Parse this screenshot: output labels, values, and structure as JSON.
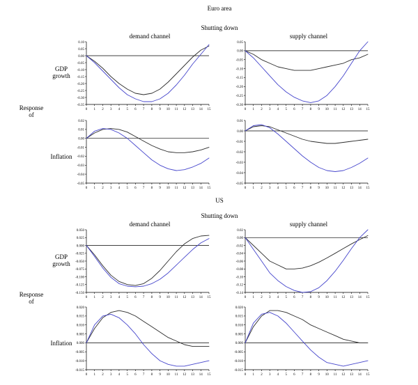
{
  "figure": {
    "euro_panel_title": "Euro area",
    "us_panel_title": "US",
    "shutting_down": "Shutting down",
    "demand_channel": "demand channel",
    "supply_channel": "supply channel",
    "response_of_line1": "Response",
    "response_of_line2": "of",
    "gdp_growth_line1": "GDP",
    "gdp_growth_line2": "growth",
    "inflation": "Inflation"
  },
  "colors": {
    "black_line": "#2b2b2b",
    "blue_line": "#4545cc",
    "axis": "#000000"
  },
  "chart_data": [
    {
      "id": "euro-gdp-demand",
      "panel": "Euro area",
      "row": "GDP growth",
      "column": "demand channel",
      "type": "line",
      "x": [
        0,
        1,
        2,
        3,
        4,
        5,
        6,
        7,
        8,
        9,
        10,
        11,
        12,
        13,
        14,
        15
      ],
      "ylim": [
        -0.35,
        0.1
      ],
      "yticks": [
        "0.10",
        "0.05",
        "0.00",
        "-0.05",
        "-0.10",
        "-0.15",
        "-0.20",
        "-0.25",
        "-0.30",
        "-0.35"
      ],
      "series": [
        {
          "name": "series-black",
          "color": "#2b2b2b",
          "values": [
            0.0,
            -0.04,
            -0.09,
            -0.15,
            -0.2,
            -0.24,
            -0.27,
            -0.28,
            -0.27,
            -0.24,
            -0.19,
            -0.13,
            -0.07,
            -0.01,
            0.04,
            0.07
          ]
        },
        {
          "name": "series-blue",
          "color": "#4545cc",
          "values": [
            0.0,
            -0.05,
            -0.11,
            -0.17,
            -0.23,
            -0.28,
            -0.31,
            -0.33,
            -0.33,
            -0.31,
            -0.27,
            -0.21,
            -0.14,
            -0.06,
            0.01,
            0.08
          ]
        }
      ]
    },
    {
      "id": "euro-gdp-supply",
      "panel": "Euro area",
      "row": "GDP growth",
      "column": "supply channel",
      "type": "line",
      "x": [
        0,
        1,
        2,
        3,
        4,
        5,
        6,
        7,
        8,
        9,
        10,
        11,
        12,
        13,
        14,
        15
      ],
      "ylim": [
        -0.3,
        0.05
      ],
      "yticks": [
        "0.05",
        "0.00",
        "-0.05",
        "-0.10",
        "-0.15",
        "-0.20",
        "-0.25",
        "-0.30"
      ],
      "series": [
        {
          "name": "series-black",
          "color": "#2b2b2b",
          "values": [
            0.0,
            -0.02,
            -0.05,
            -0.07,
            -0.09,
            -0.1,
            -0.11,
            -0.11,
            -0.11,
            -0.1,
            -0.09,
            -0.08,
            -0.07,
            -0.05,
            -0.04,
            -0.02
          ]
        },
        {
          "name": "series-blue",
          "color": "#4545cc",
          "values": [
            0.0,
            -0.04,
            -0.09,
            -0.14,
            -0.19,
            -0.23,
            -0.26,
            -0.28,
            -0.29,
            -0.28,
            -0.25,
            -0.2,
            -0.14,
            -0.07,
            0.0,
            0.05
          ]
        }
      ]
    },
    {
      "id": "euro-inflation-demand",
      "panel": "Euro area",
      "row": "Inflation",
      "column": "demand channel",
      "type": "line",
      "x": [
        0,
        1,
        2,
        3,
        4,
        5,
        6,
        7,
        8,
        9,
        10,
        11,
        12,
        13,
        14,
        15
      ],
      "ylim": [
        -0.05,
        0.02
      ],
      "yticks": [
        "0.02",
        "0.01",
        "0.00",
        "-0.01",
        "-0.02",
        "-0.03",
        "-0.04",
        "-0.05"
      ],
      "series": [
        {
          "name": "series-black",
          "color": "#2b2b2b",
          "values": [
            0.0,
            0.006,
            0.01,
            0.011,
            0.01,
            0.007,
            0.002,
            -0.003,
            -0.008,
            -0.012,
            -0.015,
            -0.016,
            -0.016,
            -0.015,
            -0.013,
            -0.01
          ]
        },
        {
          "name": "series-blue",
          "color": "#4545cc",
          "values": [
            0.0,
            0.008,
            0.011,
            0.01,
            0.006,
            0.0,
            -0.008,
            -0.016,
            -0.024,
            -0.03,
            -0.034,
            -0.036,
            -0.035,
            -0.032,
            -0.028,
            -0.022
          ]
        }
      ]
    },
    {
      "id": "euro-inflation-supply",
      "panel": "Euro area",
      "row": "Inflation",
      "column": "supply channel",
      "type": "line",
      "x": [
        0,
        1,
        2,
        3,
        4,
        5,
        6,
        7,
        8,
        9,
        10,
        11,
        12,
        13,
        14,
        15
      ],
      "ylim": [
        -0.05,
        0.01
      ],
      "yticks": [
        "0.01",
        "0.00",
        "-0.01",
        "-0.02",
        "-0.03",
        "-0.04",
        "-0.05"
      ],
      "series": [
        {
          "name": "series-black",
          "color": "#2b2b2b",
          "values": [
            0.0,
            0.004,
            0.005,
            0.004,
            0.001,
            -0.002,
            -0.005,
            -0.008,
            -0.01,
            -0.011,
            -0.012,
            -0.012,
            -0.011,
            -0.01,
            -0.009,
            -0.008
          ]
        },
        {
          "name": "series-blue",
          "color": "#4545cc",
          "values": [
            0.0,
            0.005,
            0.006,
            0.003,
            -0.003,
            -0.01,
            -0.017,
            -0.024,
            -0.03,
            -0.035,
            -0.038,
            -0.039,
            -0.038,
            -0.035,
            -0.031,
            -0.026
          ]
        }
      ]
    },
    {
      "id": "us-gdp-demand",
      "panel": "US",
      "row": "GDP growth",
      "column": "demand channel",
      "type": "line",
      "x": [
        0,
        1,
        2,
        3,
        4,
        5,
        6,
        7,
        8,
        9,
        10,
        11,
        12,
        13,
        14,
        15
      ],
      "ylim": [
        -0.15,
        0.05
      ],
      "yticks": [
        "0.050",
        "0.025",
        "0.000",
        "-0.025",
        "-0.050",
        "-0.075",
        "-0.100",
        "-0.125",
        "-0.150"
      ],
      "series": [
        {
          "name": "series-black",
          "color": "#2b2b2b",
          "values": [
            0.0,
            -0.03,
            -0.065,
            -0.095,
            -0.115,
            -0.125,
            -0.128,
            -0.122,
            -0.105,
            -0.08,
            -0.05,
            -0.02,
            0.005,
            0.022,
            0.03,
            0.032
          ]
        },
        {
          "name": "series-blue",
          "color": "#4545cc",
          "values": [
            0.0,
            -0.035,
            -0.072,
            -0.102,
            -0.122,
            -0.13,
            -0.132,
            -0.13,
            -0.122,
            -0.108,
            -0.088,
            -0.063,
            -0.038,
            -0.013,
            0.008,
            0.022
          ]
        }
      ]
    },
    {
      "id": "us-gdp-supply",
      "panel": "US",
      "row": "GDP growth",
      "column": "supply channel",
      "type": "line",
      "x": [
        0,
        1,
        2,
        3,
        4,
        5,
        6,
        7,
        8,
        9,
        10,
        11,
        12,
        13,
        14,
        15
      ],
      "ylim": [
        -0.14,
        0.02
      ],
      "yticks": [
        "0.02",
        "0.00",
        "-0.02",
        "-0.04",
        "-0.06",
        "-0.08",
        "-0.10",
        "-0.12",
        "-0.14"
      ],
      "series": [
        {
          "name": "series-black",
          "color": "#2b2b2b",
          "values": [
            0.0,
            -0.02,
            -0.04,
            -0.06,
            -0.07,
            -0.08,
            -0.08,
            -0.078,
            -0.072,
            -0.063,
            -0.052,
            -0.04,
            -0.028,
            -0.016,
            -0.005,
            0.005
          ]
        },
        {
          "name": "series-blue",
          "color": "#4545cc",
          "values": [
            0.0,
            -0.03,
            -0.06,
            -0.09,
            -0.11,
            -0.125,
            -0.135,
            -0.14,
            -0.138,
            -0.128,
            -0.11,
            -0.086,
            -0.058,
            -0.028,
            0.0,
            0.02
          ]
        }
      ]
    },
    {
      "id": "us-inflation-demand",
      "panel": "US",
      "row": "Inflation",
      "column": "demand channel",
      "type": "line",
      "x": [
        0,
        1,
        2,
        3,
        4,
        5,
        6,
        7,
        8,
        9,
        10,
        11,
        12,
        13,
        14,
        15
      ],
      "ylim": [
        -0.015,
        0.02
      ],
      "yticks": [
        "0.020",
        "0.015",
        "0.010",
        "0.005",
        "0.000",
        "-0.005",
        "-0.010",
        "-0.015"
      ],
      "series": [
        {
          "name": "series-black",
          "color": "#2b2b2b",
          "values": [
            0.0,
            0.008,
            0.014,
            0.017,
            0.018,
            0.017,
            0.015,
            0.012,
            0.009,
            0.006,
            0.003,
            0.001,
            -0.001,
            -0.002,
            -0.002,
            -0.002
          ]
        },
        {
          "name": "series-blue",
          "color": "#4545cc",
          "values": [
            0.0,
            0.01,
            0.015,
            0.016,
            0.014,
            0.01,
            0.005,
            -0.001,
            -0.006,
            -0.01,
            -0.012,
            -0.013,
            -0.013,
            -0.012,
            -0.011,
            -0.01
          ]
        }
      ]
    },
    {
      "id": "us-inflation-supply",
      "panel": "US",
      "row": "Inflation",
      "column": "supply channel",
      "type": "line",
      "x": [
        0,
        1,
        2,
        3,
        4,
        5,
        6,
        7,
        8,
        9,
        10,
        11,
        12,
        13,
        14,
        15
      ],
      "ylim": [
        -0.015,
        0.02
      ],
      "yticks": [
        "0.020",
        "0.015",
        "0.010",
        "0.005",
        "0.000",
        "-0.005",
        "-0.010",
        "-0.015"
      ],
      "series": [
        {
          "name": "series-black",
          "color": "#2b2b2b",
          "values": [
            0.0,
            0.009,
            0.015,
            0.018,
            0.018,
            0.017,
            0.015,
            0.013,
            0.01,
            0.008,
            0.006,
            0.004,
            0.002,
            0.001,
            0.0,
            0.0
          ]
        },
        {
          "name": "series-blue",
          "color": "#4545cc",
          "values": [
            0.0,
            0.011,
            0.016,
            0.017,
            0.015,
            0.011,
            0.006,
            0.001,
            -0.004,
            -0.008,
            -0.011,
            -0.012,
            -0.013,
            -0.012,
            -0.011,
            -0.01
          ]
        }
      ]
    }
  ]
}
